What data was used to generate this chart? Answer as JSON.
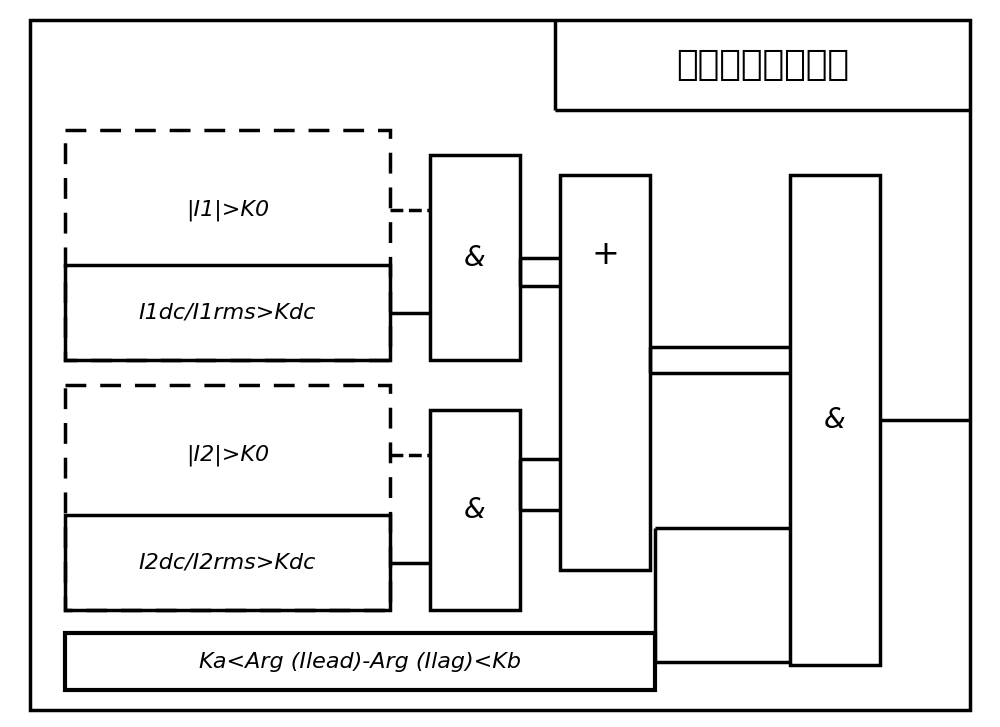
{
  "title": "基本饱和判定条件",
  "title_fontsize": 26,
  "label_i1_top": "|I1|>K0",
  "label_i1_bot": "I1dc/I1rms>Kdc",
  "label_i2_top": "|I2|>K0",
  "label_i2_bot": "I2dc/I2rms>Kdc",
  "label_phase": "Ka<Arg (Ilead)-Arg (Ilag)<Kb",
  "and_label": "&",
  "plus_label": "+",
  "bg_color": "#ffffff",
  "line_color": "#000000",
  "text_color": "#000000",
  "text_fontsize": 16,
  "fig_width": 10.0,
  "fig_height": 7.27
}
